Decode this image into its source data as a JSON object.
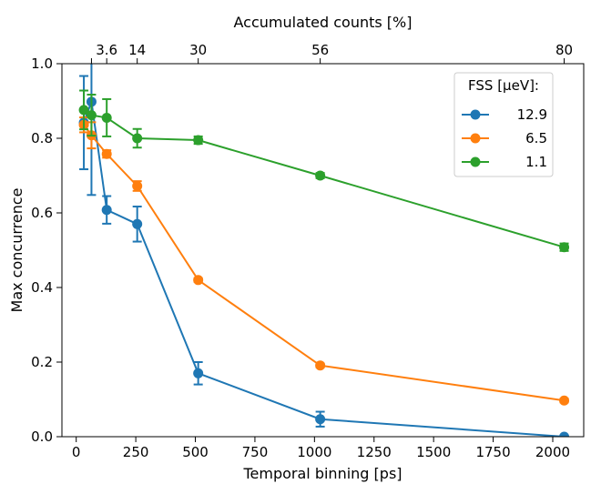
{
  "chart_data": {
    "type": "line",
    "xlabel": "Temporal binning [ps]",
    "ylabel": "Max concurrence",
    "xlim": [
      -60,
      2130
    ],
    "ylim": [
      0.0,
      1.0
    ],
    "xticks": [
      0,
      250,
      500,
      750,
      1000,
      1250,
      1500,
      1750,
      2000
    ],
    "xtick_labels": [
      "0",
      "250",
      "500",
      "750",
      "1000",
      "1250",
      "1500",
      "1750",
      "2000"
    ],
    "yticks": [
      0.0,
      0.2,
      0.4,
      0.6,
      0.8,
      1.0
    ],
    "ytick_labels": [
      "0.0",
      "0.2",
      "0.4",
      "0.6",
      "0.8",
      "1.0"
    ],
    "top_axis": {
      "label": "Accumulated counts [%]",
      "ticks": [
        64,
        128,
        256,
        512,
        1024,
        2048
      ],
      "tick_labels": [
        "3.6",
        "14",
        "30",
        "56",
        "80"
      ],
      "tick_label_positions": [
        128,
        256,
        512,
        1024,
        2048
      ]
    },
    "grid": false,
    "legend": {
      "title": "FSS [µeV]:",
      "placement": "top-right"
    },
    "series": [
      {
        "name": "12.9",
        "color": "#1f77b4",
        "x": [
          32,
          64,
          128,
          256,
          512,
          1024,
          2048
        ],
        "y": [
          0.842,
          0.898,
          0.608,
          0.57,
          0.17,
          0.047,
          0.0
        ],
        "err": [
          0.125,
          0.25,
          0.037,
          0.047,
          0.03,
          0.02,
          0.0
        ]
      },
      {
        "name": "6.5",
        "color": "#ff7f0e",
        "x": [
          32,
          64,
          128,
          256,
          512,
          1024,
          2048
        ],
        "y": [
          0.836,
          0.808,
          0.758,
          0.672,
          0.42,
          0.191,
          0.097
        ],
        "err": [
          0.02,
          0.035,
          0.01,
          0.013,
          0.005,
          0.005,
          0.005
        ]
      },
      {
        "name": "1.1",
        "color": "#2ca02c",
        "x": [
          32,
          64,
          128,
          256,
          512,
          1024,
          2048
        ],
        "y": [
          0.876,
          0.862,
          0.855,
          0.8,
          0.795,
          0.7,
          0.508
        ],
        "err": [
          0.052,
          0.055,
          0.05,
          0.025,
          0.01,
          0.007,
          0.01
        ]
      }
    ]
  }
}
